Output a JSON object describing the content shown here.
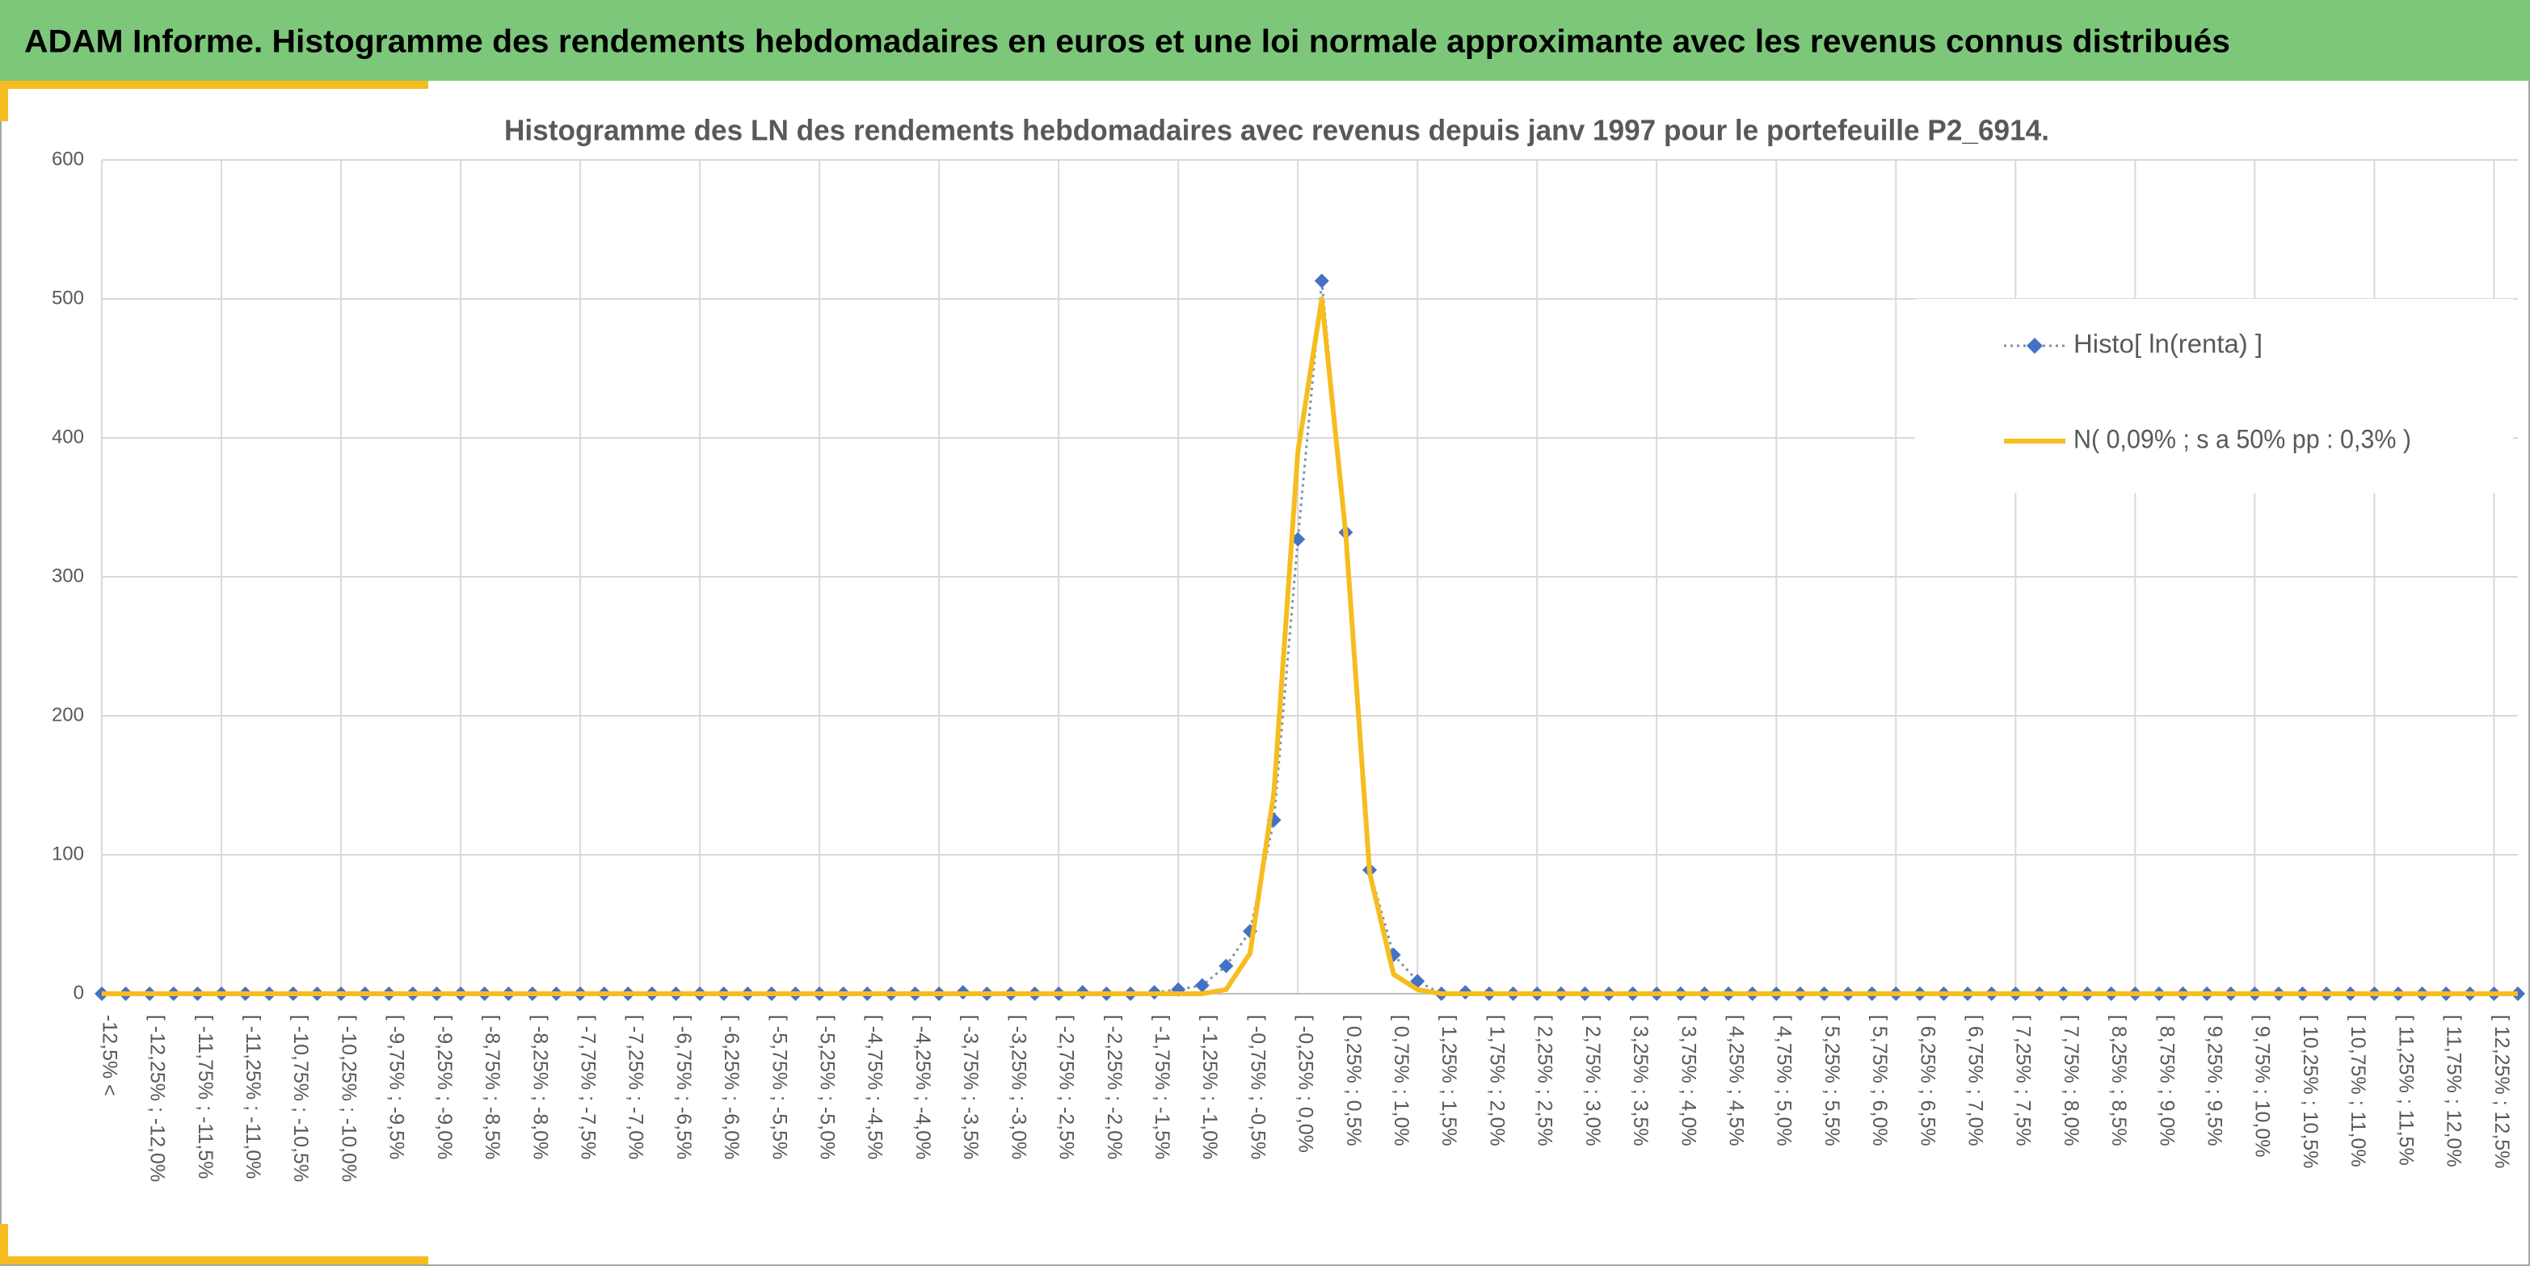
{
  "header": {
    "title": "ADAM Informe. Histogramme des rendements hebdomadaires en euros et une loi normale approximante avec les revenus connus distribués"
  },
  "chart_data": {
    "type": "line",
    "title": "Histogramme des LN des rendements hebdomadaires avec revenus depuis janv 1997 pour le portefeuille P2_6914.",
    "categories": [
      "-12,5% <",
      null,
      "[ -12,25% ; -12,0%",
      null,
      "[ -11,75% ; -11,5%",
      null,
      "[ -11,25% ; -11,0%",
      null,
      "[ -10,75% ; -10,5%",
      null,
      "[ -10,25% ; -10,0%",
      null,
      "[ -9,75% ; -9,5%",
      null,
      "[ -9,25% ; -9,0%",
      null,
      "[ -8,75% ; -8,5%",
      null,
      "[ -8,25% ; -8,0%",
      null,
      "[ -7,75% ; -7,5%",
      null,
      "[ -7,25% ; -7,0%",
      null,
      "[ -6,75% ; -6,5%",
      null,
      "[ -6,25% ; -6,0%",
      null,
      "[ -5,75% ; -5,5%",
      null,
      "[ -5,25% ; -5,0%",
      null,
      "[ -4,75% ; -4,5%",
      null,
      "[ -4,25% ; -4,0%",
      null,
      "[ -3,75% ; -3,5%",
      null,
      "[ -3,25% ; -3,0%",
      null,
      "[ -2,75% ; -2,5%",
      null,
      "[ -2,25% ; -2,0%",
      null,
      "[ -1,75% ; -1,5%",
      null,
      "[ -1,25% ; -1,0%",
      null,
      "[ -0,75% ; -0,5%",
      null,
      "[ -0,25% ; 0,0%",
      null,
      "[ 0,25% ; 0,5%",
      null,
      "[ 0,75% ; 1,0%",
      null,
      "[ 1,25% ; 1,5%",
      null,
      "[ 1,75% ; 2,0%",
      null,
      "[ 2,25% ; 2,5%",
      null,
      "[ 2,75% ; 3,0%",
      null,
      "[ 3,25% ; 3,5%",
      null,
      "[ 3,75% ; 4,0%",
      null,
      "[ 4,25% ; 4,5%",
      null,
      "[ 4,75% ; 5,0%",
      null,
      "[ 5,25% ; 5,5%",
      null,
      "[ 5,75% ; 6,0%",
      null,
      "[ 6,25% ; 6,5%",
      null,
      "[ 6,75% ; 7,0%",
      null,
      "[ 7,25% ; 7,5%",
      null,
      "[ 7,75% ; 8,0%",
      null,
      "[ 8,25% ; 8,5%",
      null,
      "[ 8,75% ; 9,0%",
      null,
      "[ 9,25% ; 9,5%",
      null,
      "[ 9,75% ; 10,0%",
      null,
      "[ 10,25% ; 10,5%",
      null,
      "[ 10,75% ; 11,0%",
      null,
      "[ 11,25% ; 11,5%",
      null,
      "[ 11,75% ; 12,0%",
      null,
      "[ 12,25% ; 12,5%",
      null
    ],
    "series": [
      {
        "name": "Histo[ ln(renta) ]",
        "color": "#4472c4",
        "line_color": "#7f8fa9",
        "line_style": "dotted",
        "marker": "diamond",
        "values": [
          0,
          0,
          0,
          0,
          0,
          0,
          0,
          0,
          0,
          0,
          0,
          0,
          0,
          0,
          0,
          0,
          0,
          0,
          0,
          0,
          0,
          0,
          0,
          0,
          0,
          0,
          0,
          0,
          0,
          0,
          0,
          0,
          0,
          0,
          0,
          0,
          1,
          0,
          0,
          0,
          0,
          1,
          0,
          0,
          1,
          3,
          6,
          20,
          45,
          125,
          327,
          513,
          332,
          89,
          28,
          9,
          0,
          1,
          0,
          0,
          0,
          0,
          0,
          0,
          0,
          0,
          0,
          0,
          0,
          0,
          0,
          0,
          0,
          0,
          0,
          0,
          0,
          0,
          0,
          0,
          0,
          0,
          0,
          0,
          0,
          0,
          0,
          0,
          0,
          0,
          0,
          0,
          0,
          0,
          0,
          0,
          0,
          0,
          0,
          0,
          0,
          0
        ]
      },
      {
        "name": "N( 0,09% ; s a 50% pp : 0,3% )",
        "color": "#f5bd1f",
        "line_style": "solid",
        "values": [
          0,
          0,
          0,
          0,
          0,
          0,
          0,
          0,
          0,
          0,
          0,
          0,
          0,
          0,
          0,
          0,
          0,
          0,
          0,
          0,
          0,
          0,
          0,
          0,
          0,
          0,
          0,
          0,
          0,
          0,
          0,
          0,
          0,
          0,
          0,
          0,
          0,
          0,
          0,
          0,
          0,
          0,
          0,
          0,
          0,
          0,
          0,
          3,
          29,
          145,
          390,
          500,
          331,
          87,
          14,
          3,
          0,
          0,
          0,
          0,
          0,
          0,
          0,
          0,
          0,
          0,
          0,
          0,
          0,
          0,
          0,
          0,
          0,
          0,
          0,
          0,
          0,
          0,
          0,
          0,
          0,
          0,
          0,
          0,
          0,
          0,
          0,
          0,
          0,
          0,
          0,
          0,
          0,
          0,
          0,
          0,
          0,
          0,
          0,
          0,
          0,
          0
        ]
      }
    ],
    "ylim": [
      0,
      600
    ],
    "yticks": [
      0,
      100,
      200,
      300,
      400,
      500,
      600
    ],
    "grid": true,
    "legend": "upper right"
  }
}
